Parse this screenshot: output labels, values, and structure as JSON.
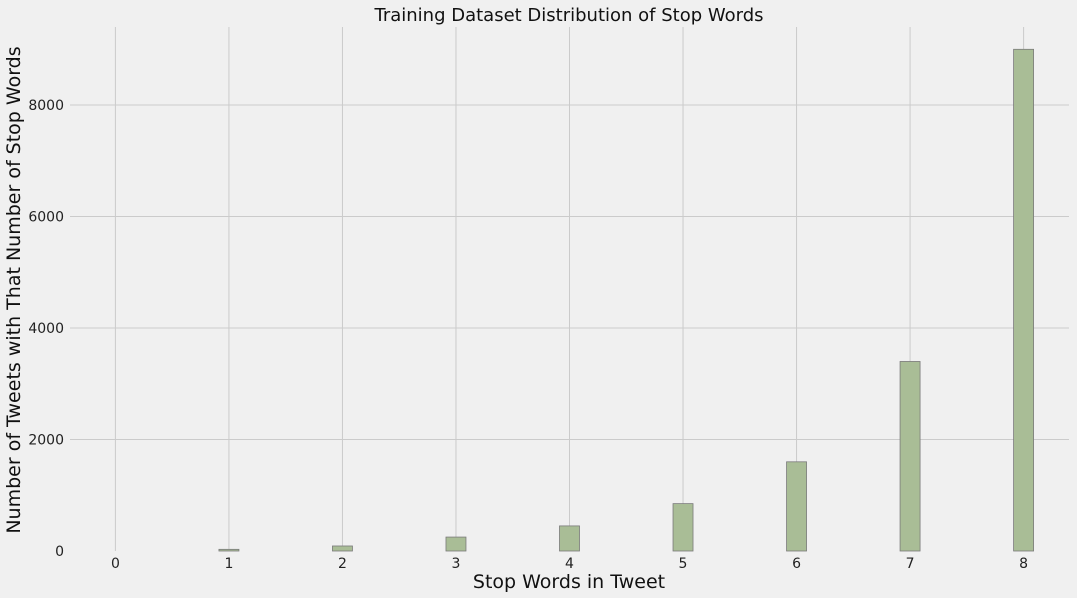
{
  "chart_data": {
    "type": "bar",
    "title": "Training Dataset Distribution of Stop Words",
    "xlabel": "Stop Words in Tweet",
    "ylabel": "Number of Tweets with That Number of Stop Words",
    "x_ticks": [
      "0",
      "1",
      "2",
      "3",
      "4",
      "5",
      "6",
      "7",
      "8"
    ],
    "y_ticks": [
      "0",
      "2000",
      "4000",
      "6000",
      "8000"
    ],
    "xlim": [
      -0.4,
      8.4
    ],
    "ylim": [
      0,
      9400
    ],
    "grid": true,
    "bar_color": "#a9bd96",
    "bar_edge_color": "#7a7a7a",
    "background_color": "#f0f0f0",
    "grid_color": "#cbcbcb",
    "categories": [
      1,
      2,
      3,
      4,
      5,
      6,
      7,
      8
    ],
    "values": [
      30,
      90,
      250,
      450,
      850,
      1600,
      3400,
      9000
    ]
  }
}
